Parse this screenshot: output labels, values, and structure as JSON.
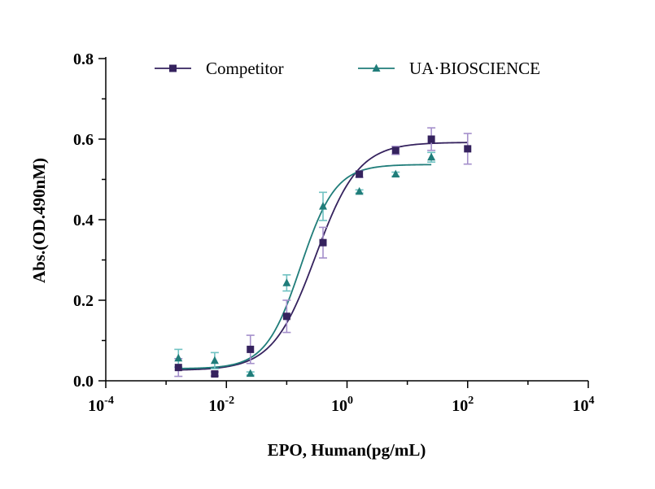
{
  "chart_data": {
    "type": "scatter",
    "title": "",
    "xlabel": "EPO, Human(pg/mL)",
    "ylabel": "Abs.(OD.490nM)",
    "x_scale": "log",
    "xlim": [
      0.0001,
      10000
    ],
    "ylim": [
      0,
      0.8
    ],
    "grid": false,
    "legend_position": "top",
    "x_ticks": [
      {
        "value": 0.0001,
        "base": "10",
        "exp": "-4"
      },
      {
        "value": 0.01,
        "base": "10",
        "exp": "-2"
      },
      {
        "value": 1,
        "base": "10",
        "exp": "0"
      },
      {
        "value": 100,
        "base": "10",
        "exp": "2"
      },
      {
        "value": 10000,
        "base": "10",
        "exp": "4"
      }
    ],
    "y_ticks": [
      {
        "value": 0.0,
        "label": "0.0"
      },
      {
        "value": 0.2,
        "label": "0.2"
      },
      {
        "value": 0.4,
        "label": "0.4"
      },
      {
        "value": 0.6,
        "label": "0.6"
      },
      {
        "value": 0.8,
        "label": "0.8"
      }
    ],
    "series": [
      {
        "name": "Competitor",
        "marker": "square",
        "color": "#35225e",
        "error_color": "#a48fcb",
        "x": [
          0.0016,
          0.0064,
          0.025,
          0.1,
          0.4,
          1.6,
          6.4,
          25,
          100
        ],
        "y": [
          0.033,
          0.017,
          0.078,
          0.16,
          0.343,
          0.513,
          0.572,
          0.6,
          0.576
        ],
        "err": [
          0.022,
          0.005,
          0.035,
          0.04,
          0.038,
          0.008,
          0.01,
          0.028,
          0.038
        ],
        "fit": {
          "bottom": 0.026,
          "top": 0.592,
          "ec50": 0.3,
          "hill": 1.22
        }
      },
      {
        "name": "UA·BIOSCIENCE",
        "marker": "triangle",
        "color": "#207d7a",
        "error_color": "#6fc2c2",
        "x": [
          0.0016,
          0.0064,
          0.025,
          0.1,
          0.4,
          1.6,
          6.4,
          25
        ],
        "y": [
          0.056,
          0.05,
          0.018,
          0.243,
          0.433,
          0.47,
          0.513,
          0.555
        ],
        "err": [
          0.022,
          0.02,
          0.004,
          0.02,
          0.035,
          0.004,
          0.005,
          0.012
        ],
        "fit": {
          "bottom": 0.03,
          "top": 0.537,
          "ec50": 0.17,
          "hill": 1.5
        }
      }
    ]
  }
}
